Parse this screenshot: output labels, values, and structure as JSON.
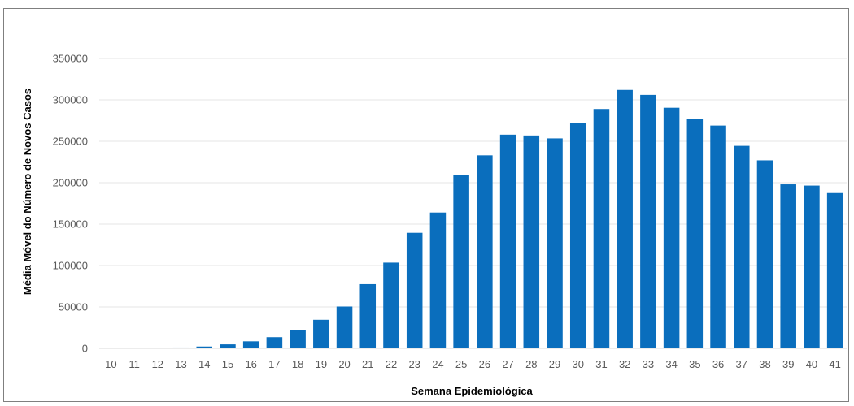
{
  "chart_data": {
    "type": "bar",
    "title": "",
    "xlabel": "Semana Epidemiológica",
    "ylabel": "Média Móvel do Número de Novos Casos",
    "ylim": [
      0,
      350000
    ],
    "yticks": [
      0,
      50000,
      100000,
      150000,
      200000,
      250000,
      300000,
      350000
    ],
    "grid": true,
    "legend": "none",
    "bar_color": "#0a6ebd",
    "categories": [
      "10",
      "11",
      "12",
      "13",
      "14",
      "15",
      "16",
      "17",
      "18",
      "19",
      "20",
      "21",
      "22",
      "23",
      "24",
      "25",
      "26",
      "27",
      "28",
      "29",
      "30",
      "31",
      "32",
      "33",
      "34",
      "35",
      "36",
      "37",
      "38",
      "39",
      "40",
      "41"
    ],
    "values": [
      50,
      150,
      500,
      1000,
      2200,
      4800,
      8500,
      13500,
      22000,
      34500,
      50500,
      77500,
      103500,
      139500,
      164000,
      209500,
      233000,
      258000,
      257000,
      253500,
      272500,
      289000,
      312000,
      306000,
      290500,
      276500,
      269000,
      244500,
      227000,
      198000,
      196500,
      187500
    ]
  }
}
